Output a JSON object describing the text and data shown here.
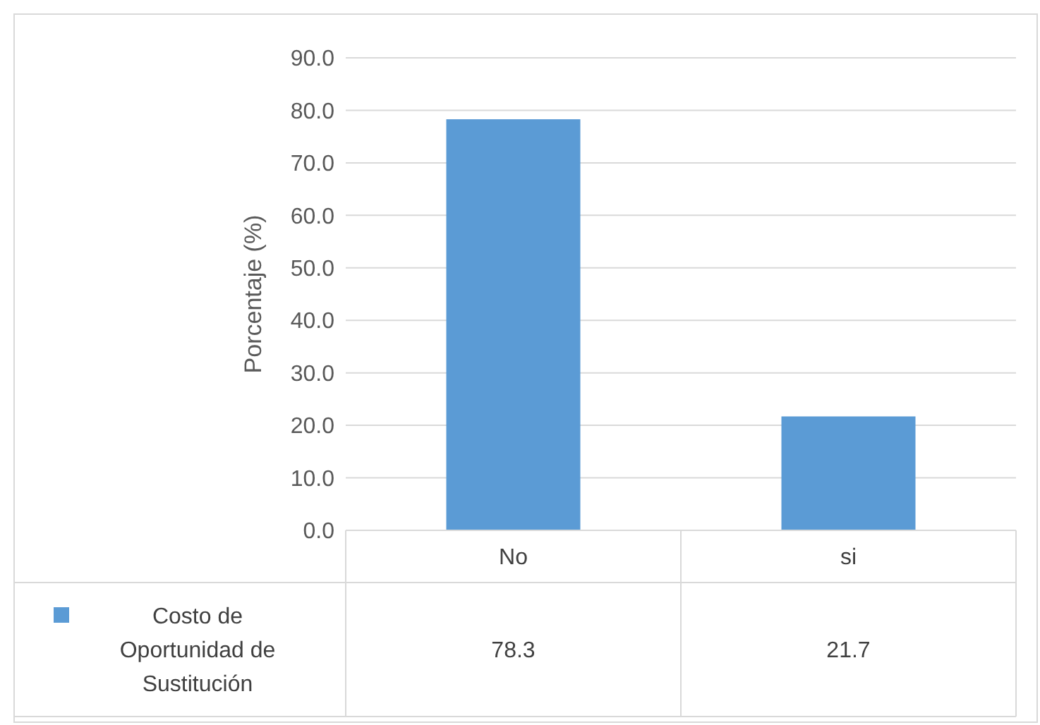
{
  "chart_data": {
    "type": "bar",
    "ylabel": "Porcentaje (%)",
    "categories": [
      "No",
      "si"
    ],
    "series": [
      {
        "name": "Costo de Oportunidad de Sustitución",
        "color": "#5b9bd5",
        "values": [
          78.3,
          21.7
        ]
      }
    ],
    "ylim": [
      0,
      90
    ],
    "yticks": [
      {
        "value": 0,
        "label": "0.0"
      },
      {
        "value": 10,
        "label": "10.0"
      },
      {
        "value": 20,
        "label": "20.0"
      },
      {
        "value": 30,
        "label": "30.0"
      },
      {
        "value": 40,
        "label": "40.0"
      },
      {
        "value": 50,
        "label": "50.0"
      },
      {
        "value": 60,
        "label": "60.0"
      },
      {
        "value": 70,
        "label": "70.0"
      },
      {
        "value": 80,
        "label": "80.0"
      },
      {
        "value": 90,
        "label": "90.0"
      }
    ],
    "grid": "y",
    "legend": "bottom",
    "data_labels": true
  }
}
